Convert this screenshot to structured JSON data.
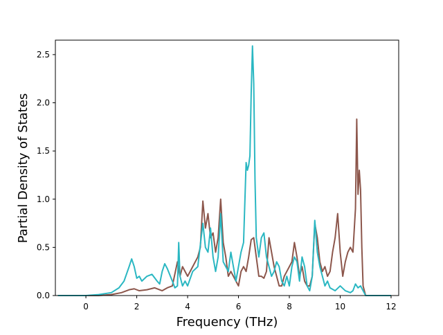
{
  "chart_data": {
    "type": "line",
    "title": "",
    "xlabel": "Frequency (THz)",
    "ylabel": "Partial Density of States",
    "xlim": [
      -1.2,
      12.3
    ],
    "ylim": [
      0,
      2.65
    ],
    "x_ticks": [
      0,
      2,
      4,
      6,
      8,
      10,
      12
    ],
    "x_tick_labels": [
      "0",
      "2",
      "4",
      "6",
      "8",
      "10",
      "12"
    ],
    "y_ticks": [
      0.0,
      0.5,
      1.0,
      1.5,
      2.0,
      2.5
    ],
    "y_tick_labels": [
      "0.0",
      "0.5",
      "1.0",
      "1.5",
      "2.0",
      "2.5"
    ],
    "grid": false,
    "legend": "none",
    "series": [
      {
        "color": "#8c564b",
        "x": [
          -1.1,
          0.0,
          0.5,
          1.0,
          1.4,
          1.7,
          1.9,
          2.1,
          2.4,
          2.7,
          3.0,
          3.2,
          3.4,
          3.6,
          3.7,
          3.8,
          4.0,
          4.2,
          4.4,
          4.5,
          4.6,
          4.7,
          4.8,
          4.9,
          5.0,
          5.1,
          5.2,
          5.3,
          5.4,
          5.5,
          5.6,
          5.7,
          5.8,
          5.9,
          6.0,
          6.1,
          6.2,
          6.3,
          6.4,
          6.5,
          6.6,
          6.7,
          6.8,
          6.9,
          7.0,
          7.1,
          7.2,
          7.3,
          7.4,
          7.5,
          7.6,
          7.7,
          7.8,
          7.9,
          8.0,
          8.1,
          8.2,
          8.3,
          8.4,
          8.5,
          8.6,
          8.7,
          8.8,
          8.9,
          9.0,
          9.1,
          9.2,
          9.3,
          9.4,
          9.5,
          9.6,
          9.7,
          9.8,
          9.9,
          10.0,
          10.1,
          10.2,
          10.3,
          10.4,
          10.5,
          10.6,
          10.65,
          10.7,
          10.75,
          10.8,
          10.85,
          10.9,
          11.0,
          12.0
        ],
        "y": [
          0.0,
          0.0,
          0.0,
          0.01,
          0.03,
          0.06,
          0.07,
          0.05,
          0.06,
          0.08,
          0.05,
          0.08,
          0.1,
          0.35,
          0.2,
          0.3,
          0.2,
          0.3,
          0.4,
          0.5,
          0.98,
          0.7,
          0.85,
          0.6,
          0.65,
          0.45,
          0.6,
          1.0,
          0.55,
          0.4,
          0.2,
          0.25,
          0.2,
          0.15,
          0.1,
          0.25,
          0.3,
          0.25,
          0.4,
          0.58,
          0.6,
          0.4,
          0.2,
          0.2,
          0.18,
          0.25,
          0.6,
          0.45,
          0.3,
          0.2,
          0.1,
          0.1,
          0.2,
          0.25,
          0.3,
          0.35,
          0.55,
          0.4,
          0.2,
          0.3,
          0.15,
          0.1,
          0.1,
          0.2,
          0.75,
          0.6,
          0.35,
          0.25,
          0.3,
          0.2,
          0.25,
          0.45,
          0.6,
          0.85,
          0.45,
          0.2,
          0.35,
          0.45,
          0.5,
          0.45,
          0.9,
          1.83,
          1.05,
          1.3,
          1.1,
          0.5,
          0.1,
          0.0,
          0.0
        ]
      },
      {
        "color": "#2ab7c2",
        "x": [
          -1.1,
          0.0,
          0.5,
          1.0,
          1.3,
          1.5,
          1.7,
          1.8,
          1.9,
          2.0,
          2.1,
          2.2,
          2.4,
          2.6,
          2.8,
          2.9,
          3.0,
          3.1,
          3.2,
          3.4,
          3.5,
          3.6,
          3.65,
          3.7,
          3.8,
          3.9,
          4.0,
          4.2,
          4.4,
          4.6,
          4.7,
          4.8,
          4.9,
          5.0,
          5.1,
          5.2,
          5.3,
          5.4,
          5.5,
          5.6,
          5.7,
          5.8,
          5.9,
          6.0,
          6.1,
          6.2,
          6.3,
          6.35,
          6.4,
          6.45,
          6.5,
          6.55,
          6.6,
          6.65,
          6.7,
          6.8,
          6.9,
          7.0,
          7.1,
          7.2,
          7.3,
          7.4,
          7.5,
          7.6,
          7.7,
          7.8,
          7.9,
          8.0,
          8.1,
          8.2,
          8.3,
          8.4,
          8.5,
          8.6,
          8.7,
          8.8,
          8.9,
          9.0,
          9.1,
          9.2,
          9.3,
          9.4,
          9.5,
          9.6,
          9.8,
          10.0,
          10.2,
          10.4,
          10.5,
          10.6,
          10.7,
          10.8,
          10.9,
          11.0,
          12.0
        ],
        "y": [
          0.0,
          0.0,
          0.01,
          0.03,
          0.08,
          0.15,
          0.3,
          0.38,
          0.3,
          0.18,
          0.2,
          0.15,
          0.2,
          0.22,
          0.15,
          0.12,
          0.25,
          0.33,
          0.28,
          0.15,
          0.08,
          0.1,
          0.55,
          0.2,
          0.1,
          0.15,
          0.1,
          0.25,
          0.3,
          0.75,
          0.5,
          0.45,
          0.7,
          0.4,
          0.25,
          0.4,
          0.85,
          0.35,
          0.3,
          0.25,
          0.45,
          0.3,
          0.15,
          0.3,
          0.45,
          0.55,
          1.38,
          1.3,
          1.35,
          1.45,
          2.1,
          2.59,
          2.2,
          1.2,
          0.6,
          0.4,
          0.6,
          0.65,
          0.4,
          0.3,
          0.2,
          0.25,
          0.35,
          0.3,
          0.15,
          0.1,
          0.2,
          0.1,
          0.3,
          0.4,
          0.35,
          0.15,
          0.4,
          0.3,
          0.1,
          0.05,
          0.2,
          0.78,
          0.45,
          0.3,
          0.2,
          0.1,
          0.15,
          0.08,
          0.05,
          0.1,
          0.05,
          0.03,
          0.05,
          0.12,
          0.08,
          0.1,
          0.05,
          0.0,
          0.0
        ]
      }
    ]
  }
}
